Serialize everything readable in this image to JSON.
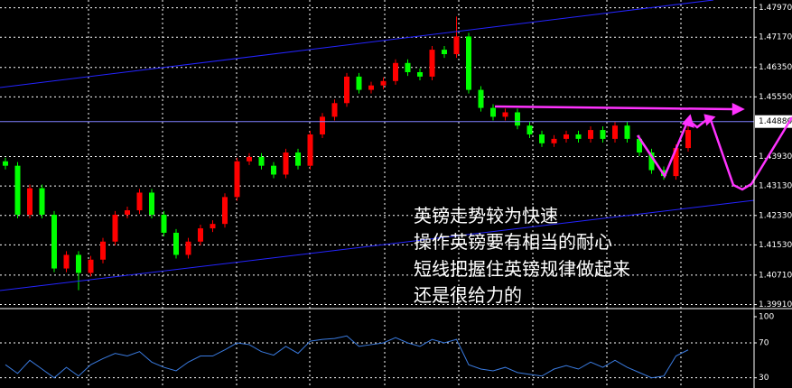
{
  "chart_data": [
    {
      "type": "candlestick",
      "up_color": "#ff0000",
      "down_color": "#00ff00",
      "open": [
        1.438,
        1.4368,
        1.4235,
        1.4307,
        1.4235,
        1.4089,
        1.4126,
        1.4077,
        1.4113,
        1.4162,
        1.4235,
        1.4247,
        1.4295,
        1.4235,
        1.4186,
        1.4126,
        1.4162,
        1.4198,
        1.421,
        1.4283,
        1.438,
        1.4392,
        1.4368,
        1.4344,
        1.4404,
        1.4368,
        1.4453,
        1.4501,
        1.4538,
        1.461,
        1.4574,
        1.4586,
        1.4598,
        1.4647,
        1.4622,
        1.461,
        1.4683,
        1.4671,
        1.4719,
        1.4574,
        1.4525,
        1.4501,
        1.4513,
        1.4477,
        1.4453,
        1.4429,
        1.4441,
        1.4453,
        1.4441,
        1.4465,
        1.4441,
        1.4477,
        1.4441,
        1.4404,
        1.4356,
        1.434,
        1.4416
      ],
      "high": [
        1.439,
        1.4378,
        1.4317,
        1.4317,
        1.4245,
        1.4136,
        1.4136,
        1.4123,
        1.4172,
        1.4245,
        1.4257,
        1.4305,
        1.4305,
        1.4245,
        1.4196,
        1.4172,
        1.4208,
        1.422,
        1.4293,
        1.439,
        1.4402,
        1.4402,
        1.4378,
        1.4414,
        1.4414,
        1.4463,
        1.4511,
        1.4548,
        1.462,
        1.462,
        1.4596,
        1.4608,
        1.4657,
        1.4657,
        1.4632,
        1.4693,
        1.4693,
        1.4773,
        1.4729,
        1.4584,
        1.4535,
        1.4523,
        1.4523,
        1.4487,
        1.4463,
        1.4451,
        1.4463,
        1.4463,
        1.4475,
        1.4475,
        1.4487,
        1.4487,
        1.4451,
        1.4414,
        1.4366,
        1.4426,
        1.4475
      ],
      "low": [
        1.4358,
        1.4225,
        1.4225,
        1.4225,
        1.4079,
        1.4079,
        1.403,
        1.4067,
        1.4103,
        1.4152,
        1.4225,
        1.4237,
        1.4225,
        1.4176,
        1.4116,
        1.4116,
        1.4152,
        1.4188,
        1.42,
        1.4273,
        1.437,
        1.4358,
        1.4334,
        1.4334,
        1.4358,
        1.4358,
        1.4443,
        1.4491,
        1.4528,
        1.4564,
        1.4564,
        1.4576,
        1.4588,
        1.4612,
        1.46,
        1.46,
        1.4661,
        1.4661,
        1.4564,
        1.4515,
        1.4491,
        1.4491,
        1.4467,
        1.4443,
        1.4419,
        1.4419,
        1.4431,
        1.4431,
        1.4431,
        1.4431,
        1.4431,
        1.4431,
        1.4394,
        1.4346,
        1.433,
        1.433,
        1.4406
      ],
      "close": [
        1.4368,
        1.4235,
        1.4307,
        1.4235,
        1.4089,
        1.4126,
        1.4077,
        1.4113,
        1.4162,
        1.4235,
        1.4247,
        1.4295,
        1.4235,
        1.4186,
        1.4126,
        1.4162,
        1.4198,
        1.421,
        1.4283,
        1.438,
        1.4392,
        1.4368,
        1.4344,
        1.4404,
        1.4368,
        1.4453,
        1.4501,
        1.4538,
        1.461,
        1.4574,
        1.4586,
        1.4598,
        1.4647,
        1.4622,
        1.461,
        1.4683,
        1.4671,
        1.4719,
        1.4574,
        1.4525,
        1.4501,
        1.4513,
        1.4477,
        1.4453,
        1.4429,
        1.4441,
        1.4453,
        1.4441,
        1.4465,
        1.4441,
        1.4477,
        1.4441,
        1.4404,
        1.4356,
        1.434,
        1.4416,
        1.4465
      ],
      "ylim": [
        1.3985,
        1.4818
      ],
      "yticks": [
        {
          "value": 1.4797,
          "label": "1.47970"
        },
        {
          "value": 1.4717,
          "label": "1.47170"
        },
        {
          "value": 1.4635,
          "label": "1.46350"
        },
        {
          "value": 1.4555,
          "label": "1.45550"
        },
        {
          "value": 1.4393,
          "label": "1.43930"
        },
        {
          "value": 1.4313,
          "label": "1.43130"
        },
        {
          "value": 1.4233,
          "label": "1.42330"
        },
        {
          "value": 1.4153,
          "label": "1.41530"
        },
        {
          "value": 1.4071,
          "label": "1.40710"
        },
        {
          "value": 1.3991,
          "label": "1.39910"
        }
      ],
      "current_price": {
        "value": 1.4488,
        "label": "1.44880"
      },
      "grid": true,
      "annotations": [
        "英镑走势较为快速",
        "操作英镑要有相当的耐心",
        "短线把握住英镑规律做起来",
        "还是很给力的"
      ]
    },
    {
      "type": "line",
      "color": "#3a7be0",
      "values": [
        45,
        35,
        50,
        40,
        30,
        42,
        32,
        45,
        52,
        58,
        55,
        60,
        48,
        42,
        38,
        48,
        55,
        55,
        62,
        70,
        68,
        60,
        56,
        66,
        58,
        72,
        74,
        75,
        78,
        66,
        68,
        70,
        76,
        70,
        66,
        74,
        70,
        74,
        45,
        40,
        38,
        42,
        36,
        34,
        32,
        40,
        44,
        40,
        48,
        42,
        50,
        42,
        36,
        30,
        32,
        55,
        62
      ],
      "ylim": [
        18.3,
        106.2
      ],
      "yticks": [
        100,
        70,
        30
      ],
      "grid_ticks": [
        70,
        30
      ]
    }
  ]
}
